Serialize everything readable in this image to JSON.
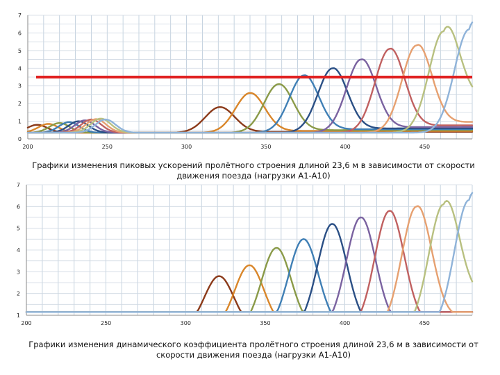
{
  "chart_data": [
    {
      "type": "line",
      "title": "Графики изменения пиковых ускорений пролётного строения длиной 23,6 м в зависимости от скорости движения поезда (нагрузки А1-А10)",
      "xlim": [
        200,
        480
      ],
      "ylim": [
        0,
        7
      ],
      "x_ticks": [
        "200",
        "250",
        "300",
        "350",
        "400",
        "450"
      ],
      "y_ticks": [
        "0",
        "1",
        "2",
        "3",
        "4",
        "5",
        "6",
        "7"
      ],
      "grid": true,
      "threshold": {
        "y": 3.5,
        "color": "#e02020"
      },
      "series": [
        {
          "color": "#8b3a1a",
          "peak_x": 321,
          "peak_y": 1.8,
          "early_x": 206,
          "early_y": 0.8,
          "tail": 0.45
        },
        {
          "color": "#d9862a",
          "peak_x": 340,
          "peak_y": 2.6,
          "early_x": 213,
          "early_y": 0.85,
          "tail": 0.55
        },
        {
          "color": "#8a9a48",
          "peak_x": 358,
          "peak_y": 3.1,
          "early_x": 220,
          "early_y": 0.9,
          "tail": 0.65
        },
        {
          "color": "#3f7fb5",
          "peak_x": 374,
          "peak_y": 3.6,
          "early_x": 226,
          "early_y": 0.95,
          "tail": 0.75
        },
        {
          "color": "#2a4f85",
          "peak_x": 392,
          "peak_y": 4.0,
          "early_x": 232,
          "early_y": 1.0,
          "tail": 0.85
        },
        {
          "color": "#7a62a0",
          "peak_x": 410,
          "peak_y": 4.5,
          "early_x": 236,
          "early_y": 1.05,
          "tail": 1.0
        },
        {
          "color": "#c06060",
          "peak_x": 428,
          "peak_y": 5.1,
          "early_x": 240,
          "early_y": 1.1,
          "tail": 1.2
        },
        {
          "color": "#e6a070",
          "peak_x": 445,
          "peak_y": 5.3,
          "early_x": 243,
          "early_y": 1.12,
          "tail": 1.6
        },
        {
          "color": "#b8c080",
          "peak_x": 462,
          "peak_y": 6.1,
          "early_x": 246,
          "early_y": 1.15,
          "tail": 4.6
        },
        {
          "color": "#8fb3d9",
          "peak_x": 478,
          "peak_y": 6.2,
          "early_x": 249,
          "early_y": 1.1,
          "tail": 6.2
        }
      ]
    },
    {
      "type": "line",
      "title": "Графики изменения динамического коэффициента пролётного строения длиной 23,6 м в зависимости от скорости движения поезда (нагрузки А1-А10)",
      "xlim": [
        200,
        480
      ],
      "ylim": [
        1,
        7
      ],
      "x_ticks": [
        "200",
        "250",
        "300",
        "350",
        "400",
        "450"
      ],
      "y_ticks": [
        "1",
        "2",
        "3",
        "4",
        "5",
        "6",
        "7"
      ],
      "grid": true,
      "series": [
        {
          "color": "#8b3a1a",
          "peak_x": 321,
          "peak_y": 2.8,
          "early_x": 206,
          "early_y": 1.5,
          "tail": 1.2
        },
        {
          "color": "#d9862a",
          "peak_x": 340,
          "peak_y": 3.3,
          "early_x": 213,
          "early_y": 1.55,
          "tail": 1.25
        },
        {
          "color": "#8a9a48",
          "peak_x": 357,
          "peak_y": 4.1,
          "early_x": 220,
          "early_y": 1.6,
          "tail": 1.3
        },
        {
          "color": "#3f7fb5",
          "peak_x": 374,
          "peak_y": 4.5,
          "early_x": 226,
          "early_y": 1.65,
          "tail": 1.35
        },
        {
          "color": "#2a4f85",
          "peak_x": 392,
          "peak_y": 5.2,
          "early_x": 232,
          "early_y": 1.7,
          "tail": 1.4
        },
        {
          "color": "#7a62a0",
          "peak_x": 410,
          "peak_y": 5.5,
          "early_x": 236,
          "early_y": 1.7,
          "tail": 1.5
        },
        {
          "color": "#c06060",
          "peak_x": 428,
          "peak_y": 5.8,
          "early_x": 240,
          "early_y": 1.68,
          "tail": 1.6
        },
        {
          "color": "#e6a070",
          "peak_x": 445,
          "peak_y": 6.0,
          "early_x": 243,
          "early_y": 1.66,
          "tail": 2.3
        },
        {
          "color": "#b8c080",
          "peak_x": 462,
          "peak_y": 6.1,
          "early_x": 246,
          "early_y": 1.64,
          "tail": 4.4
        },
        {
          "color": "#8fb3d9",
          "peak_x": 478,
          "peak_y": 6.3,
          "early_x": 249,
          "early_y": 1.6,
          "tail": 6.3
        }
      ]
    }
  ]
}
